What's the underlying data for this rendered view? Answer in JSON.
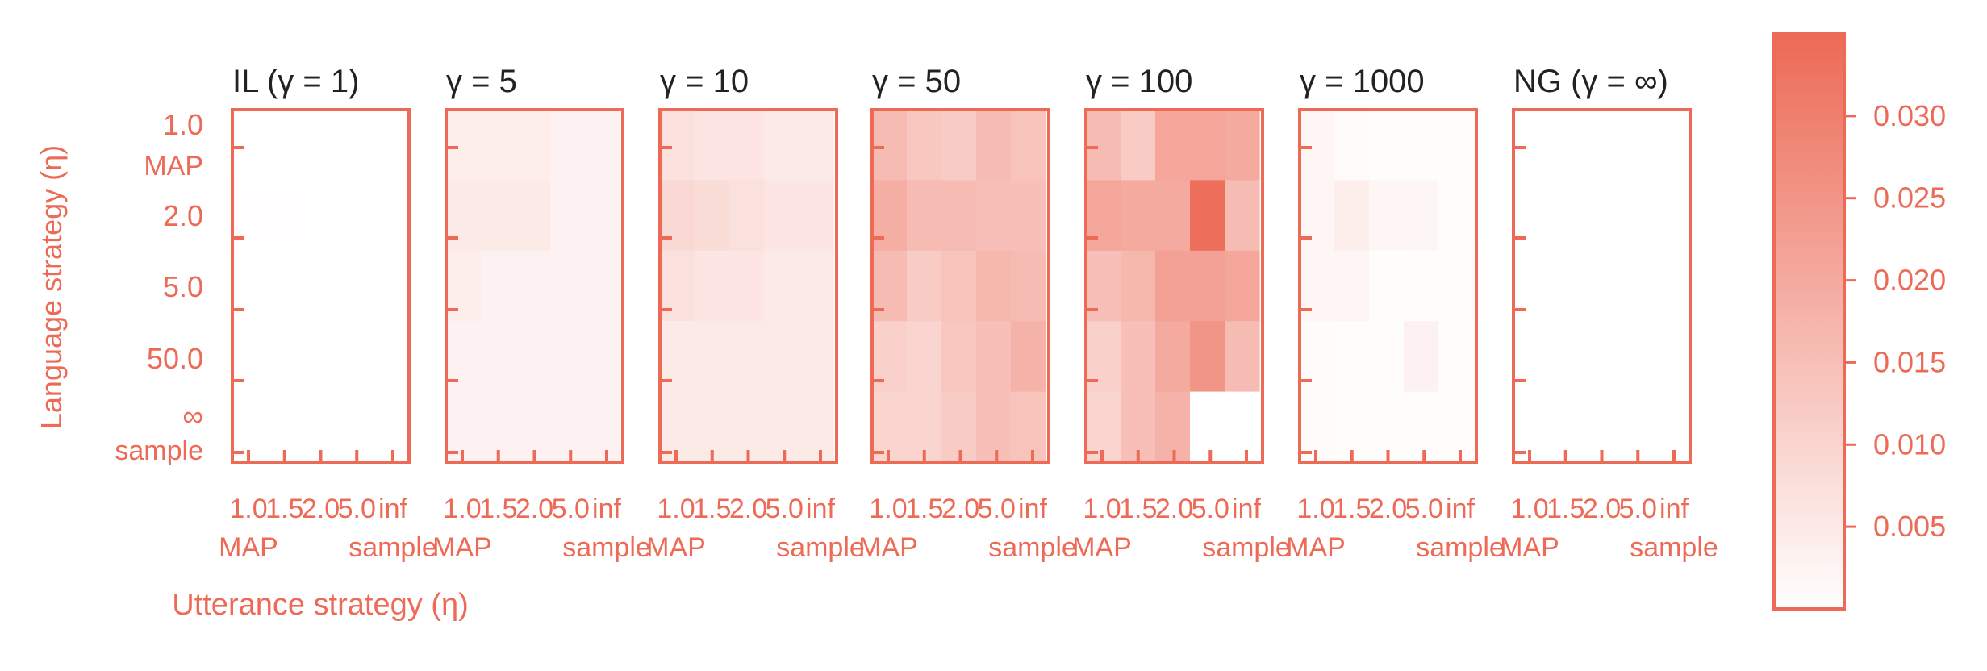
{
  "chart_data": {
    "type": "heatmap",
    "accent_color": "#EC6A56",
    "title_color": "#222222",
    "ylabel": "Language strategy (η)",
    "xlabel": "Utterance strategy (η)",
    "row_ticks": [
      {
        "primary": "1.0",
        "secondary": "MAP"
      },
      {
        "primary": "2.0",
        "secondary": ""
      },
      {
        "primary": "5.0",
        "secondary": ""
      },
      {
        "primary": "50.0",
        "secondary": ""
      },
      {
        "primary": "∞",
        "secondary": "sample"
      }
    ],
    "col_ticks": [
      {
        "primary": "1.0",
        "secondary": "MAP"
      },
      {
        "primary": "1.5",
        "secondary": ""
      },
      {
        "primary": "2.0",
        "secondary": ""
      },
      {
        "primary": "5.0",
        "secondary": ""
      },
      {
        "primary": "inf",
        "secondary": "sample"
      }
    ],
    "colorbar": {
      "vmin": 0.0,
      "vmax": 0.035,
      "ticks": [
        "0.005",
        "0.010",
        "0.015",
        "0.020",
        "0.025",
        "0.030"
      ]
    },
    "panels": [
      {
        "title": "IL (γ = 1)",
        "values": [
          [
            0.0003,
            0.0003,
            0.0002,
            0.0002,
            0.0002
          ],
          [
            0.0004,
            0.0005,
            0.0003,
            0.0002,
            0.0002
          ],
          [
            0.0002,
            0.0002,
            0.0002,
            0.0002,
            0.0002
          ],
          [
            0.0002,
            0.0002,
            0.0002,
            0.0002,
            0.0002
          ],
          [
            0.0002,
            0.0002,
            0.0002,
            0.0002,
            0.0002
          ]
        ]
      },
      {
        "title": "γ = 5",
        "values": [
          [
            0.004,
            0.004,
            0.004,
            0.003,
            0.003
          ],
          [
            0.005,
            0.005,
            0.005,
            0.003,
            0.003
          ],
          [
            0.004,
            0.003,
            0.003,
            0.003,
            0.003
          ],
          [
            0.003,
            0.003,
            0.003,
            0.003,
            0.003
          ],
          [
            0.003,
            0.003,
            0.003,
            0.003,
            0.003
          ]
        ]
      },
      {
        "title": "γ = 10",
        "values": [
          [
            0.007,
            0.006,
            0.006,
            0.005,
            0.005
          ],
          [
            0.009,
            0.008,
            0.007,
            0.006,
            0.006
          ],
          [
            0.007,
            0.006,
            0.006,
            0.005,
            0.005
          ],
          [
            0.005,
            0.005,
            0.005,
            0.005,
            0.005
          ],
          [
            0.005,
            0.005,
            0.005,
            0.005,
            0.005
          ]
        ]
      },
      {
        "title": "γ = 50",
        "values": [
          [
            0.016,
            0.013,
            0.012,
            0.016,
            0.014
          ],
          [
            0.019,
            0.016,
            0.016,
            0.015,
            0.015
          ],
          [
            0.016,
            0.012,
            0.014,
            0.017,
            0.016
          ],
          [
            0.011,
            0.01,
            0.013,
            0.015,
            0.018
          ],
          [
            0.01,
            0.01,
            0.012,
            0.015,
            0.014
          ]
        ]
      },
      {
        "title": "γ = 100",
        "values": [
          [
            0.016,
            0.012,
            0.021,
            0.021,
            0.02
          ],
          [
            0.021,
            0.02,
            0.02,
            0.034,
            0.016
          ],
          [
            0.015,
            0.017,
            0.022,
            0.022,
            0.021
          ],
          [
            0.011,
            0.015,
            0.02,
            0.025,
            0.016
          ],
          [
            0.01,
            0.015,
            0.018,
            0.0,
            0.0
          ]
        ]
      },
      {
        "title": "γ = 1000",
        "values": [
          [
            0.002,
            0.001,
            0.0006,
            0.0006,
            0.0006
          ],
          [
            0.002,
            0.004,
            0.002,
            0.002,
            0.0006
          ],
          [
            0.002,
            0.002,
            0.0006,
            0.0008,
            0.0008
          ],
          [
            0.001,
            0.0006,
            0.0006,
            0.003,
            0.0006
          ],
          [
            0.001,
            0.0006,
            0.0006,
            0.0006,
            0.0006
          ]
        ]
      },
      {
        "title": "NG (γ = ∞)",
        "values": [
          [
            0.0003,
            0.0003,
            0.0003,
            0.0003,
            0.0003
          ],
          [
            0.0003,
            0.0003,
            0.0003,
            0.0003,
            0.0003
          ],
          [
            0.0003,
            0.0003,
            0.0003,
            0.0003,
            0.0003
          ],
          [
            0.0003,
            0.0003,
            0.0003,
            0.0003,
            0.0003
          ],
          [
            0.0003,
            0.0003,
            0.0003,
            0.0003,
            0.0003
          ]
        ]
      }
    ]
  }
}
